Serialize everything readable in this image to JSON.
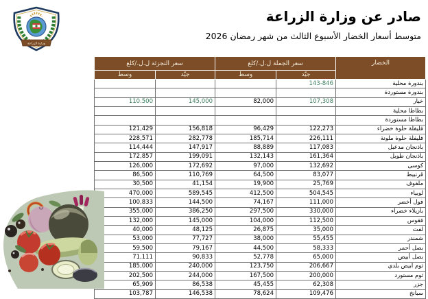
{
  "page": {
    "title": "صادر عن وزارة الزراعة",
    "subtitle": "متوسط أسعار الخضار الأسبوع الثالث من شهر رمضان 2026"
  },
  "logo": {
    "emblem": "ministry-of-agriculture-lebanon-shield",
    "banner_text": "وزارة الزراعة"
  },
  "colors": {
    "header_bg": "#7d4d28",
    "header_text": "#f2ead8",
    "highlight_green": "#3b7d5e",
    "grid_line": "#6e6e6e",
    "blob_green": "#bdc9b4"
  },
  "table": {
    "headers": {
      "vegetable": "الخضار",
      "wholesale_group": "سعر الجملة ل.ل./كلغ",
      "retail_group": "سعر التجزئة ل.ل./كلغ",
      "good": "جيّد",
      "avg": "وسط"
    },
    "rows": [
      {
        "name": "بندورة محلية",
        "wholesale_good": "143-846",
        "wholesale_avg": "",
        "retail_good": "",
        "retail_avg": "",
        "green": [
          "wholesale_good"
        ]
      },
      {
        "name": "بندورة مستوردة",
        "wholesale_good": "",
        "wholesale_avg": "",
        "retail_good": "",
        "retail_avg": "",
        "green": []
      },
      {
        "name": "خيار",
        "wholesale_good": "107,308",
        "wholesale_avg": "82,000",
        "retail_good": "145,000",
        "retail_avg": "110.500",
        "green": [
          "wholesale_good",
          "retail_good",
          "retail_avg"
        ]
      },
      {
        "name": "بطاطا محلية",
        "wholesale_good": "",
        "wholesale_avg": "",
        "retail_good": "",
        "retail_avg": "",
        "green": []
      },
      {
        "name": "بطاطا مستوردة",
        "wholesale_good": "",
        "wholesale_avg": "",
        "retail_good": "",
        "retail_avg": "",
        "green": []
      },
      {
        "name": "فليفلة حلوة خضراء",
        "wholesale_good": "122,273",
        "wholesale_avg": "96,429",
        "retail_good": "156,818",
        "retail_avg": "121,429",
        "green": []
      },
      {
        "name": "فليفلة حلوة ملونة",
        "wholesale_good": "226,111",
        "wholesale_avg": "185,714",
        "retail_good": "282,778",
        "retail_avg": "228,571",
        "green": []
      },
      {
        "name": "باذنجان مدعبل",
        "wholesale_good": "117,083",
        "wholesale_avg": "88,889",
        "retail_good": "147,917",
        "retail_avg": "114,444",
        "green": []
      },
      {
        "name": "باذنجان طويل",
        "wholesale_good": "161,364",
        "wholesale_avg": "132,143",
        "retail_good": "199,091",
        "retail_avg": "172,857",
        "green": []
      },
      {
        "name": "كوسى",
        "wholesale_good": "132,692",
        "wholesale_avg": "97,000",
        "retail_good": "172,692",
        "retail_avg": "126,000",
        "green": []
      },
      {
        "name": "قرنبيط",
        "wholesale_good": "83,077",
        "wholesale_avg": "64,500",
        "retail_good": "110,769",
        "retail_avg": "86,500",
        "green": []
      },
      {
        "name": "ملفوف",
        "wholesale_good": "25,769",
        "wholesale_avg": "19,900",
        "retail_good": "41,154",
        "retail_avg": "30,500",
        "green": []
      },
      {
        "name": "لوبياء",
        "wholesale_good": "504,545",
        "wholesale_avg": "412,500",
        "retail_good": "589,545",
        "retail_avg": "470,000",
        "green": []
      },
      {
        "name": "فول أخضر",
        "wholesale_good": "111,000",
        "wholesale_avg": "74,167",
        "retail_good": "144,500",
        "retail_avg": "100,833",
        "green": []
      },
      {
        "name": "بازيلاء خضراء",
        "wholesale_good": "330,000",
        "wholesale_avg": "297,500",
        "retail_good": "386,250",
        "retail_avg": "355,000",
        "green": []
      },
      {
        "name": "فقوس",
        "wholesale_good": "112,500",
        "wholesale_avg": "104,000",
        "retail_good": "145,000",
        "retail_avg": "132,000",
        "green": []
      },
      {
        "name": "لفت",
        "wholesale_good": "35,000",
        "wholesale_avg": "26,875",
        "retail_good": "48,125",
        "retail_avg": "40,000",
        "green": []
      },
      {
        "name": "شمندر",
        "wholesale_good": "55,455",
        "wholesale_avg": "38,000",
        "retail_good": "77,727",
        "retail_avg": "53,000",
        "green": []
      },
      {
        "name": "بصل أحمر",
        "wholesale_good": "58,333",
        "wholesale_avg": "44,500",
        "retail_good": "79,167",
        "retail_avg": "59,500",
        "green": []
      },
      {
        "name": "بصل أبيض",
        "wholesale_good": "65,000",
        "wholesale_avg": "52,778",
        "retail_good": "90,833",
        "retail_avg": "71,111",
        "green": []
      },
      {
        "name": "ثوم أبيض بلدي",
        "wholesale_good": "206,667",
        "wholesale_avg": "123,750",
        "retail_good": "240,000",
        "retail_avg": "185,000",
        "green": []
      },
      {
        "name": "ثوم مستورد",
        "wholesale_good": "200,000",
        "wholesale_avg": "167,500",
        "retail_good": "244,000",
        "retail_avg": "202,500",
        "green": []
      },
      {
        "name": "جزر",
        "wholesale_good": "62,308",
        "wholesale_avg": "45,455",
        "retail_good": "86,538",
        "retail_avg": "65,909",
        "green": []
      },
      {
        "name": "سبانخ",
        "wholesale_good": "109,476",
        "wholesale_avg": "78,624",
        "retail_good": "146,538",
        "retail_avg": "103,787",
        "green": []
      }
    ]
  }
}
